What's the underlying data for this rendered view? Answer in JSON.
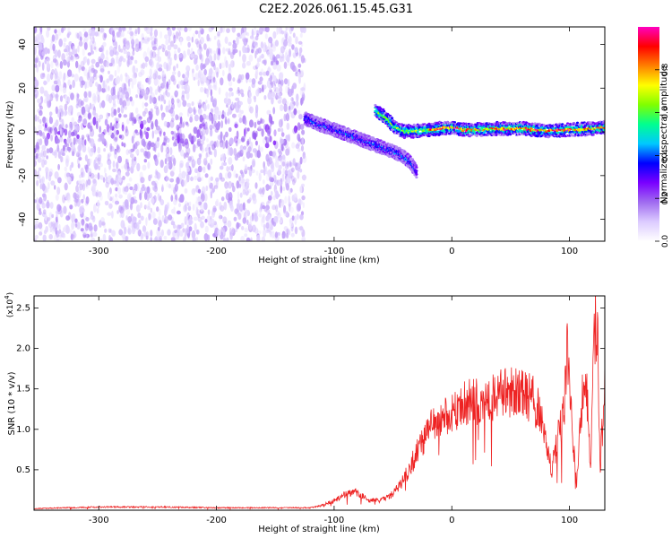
{
  "title": "C2E2.2026.061.15.45.G31",
  "chart_data": [
    {
      "type": "heatmap",
      "title": "C2E2.2026.061.15.45.G31",
      "xlabel": "Height of straight line (km)",
      "ylabel": "Frequency (Hz)",
      "xlim": [
        -355,
        130
      ],
      "ylim": [
        -50,
        48
      ],
      "xticks": [
        -300,
        -200,
        -100,
        0,
        100
      ],
      "yticks": [
        -40,
        -20,
        0,
        20,
        40
      ],
      "colorbar": {
        "label": "Normalized spectral amplitude",
        "range": [
          0,
          1
        ],
        "ticks": [
          "0.0",
          "0.2",
          "0.4",
          "0.6",
          "0.8"
        ],
        "tick_values": [
          0,
          0.2,
          0.4,
          0.6,
          0.8
        ],
        "colors": [
          "#ffffff",
          "#dccbff",
          "#a06cf0",
          "#7a00ff",
          "#0000ff",
          "#00c8ff",
          "#00ff90",
          "#80ff00",
          "#ffff00",
          "#ff8000",
          "#ff0000",
          "#ff00c0"
        ]
      },
      "noise_region": {
        "x_range": [
          -355,
          -125
        ],
        "amplitude": 0.12
      },
      "ridges": [
        {
          "name": "main",
          "points": [
            [
              -125,
              6
            ],
            [
              -110,
              3
            ],
            [
              -100,
              1
            ],
            [
              -90,
              -1
            ],
            [
              -80,
              -3
            ],
            [
              -70,
              -5
            ],
            [
              -60,
              -7
            ],
            [
              -50,
              -9
            ],
            [
              -42,
              -11
            ],
            [
              -35,
              -14
            ],
            [
              -30,
              -18
            ]
          ],
          "amplitude": 0.35
        },
        {
          "name": "upper",
          "points": [
            [
              -65,
              10
            ],
            [
              -55,
              6
            ],
            [
              -48,
              2
            ],
            [
              -40,
              0
            ],
            [
              -30,
              0.5
            ],
            [
              -20,
              1
            ],
            [
              -10,
              1.5
            ],
            [
              0,
              2
            ],
            [
              10,
              1
            ],
            [
              20,
              1
            ],
            [
              40,
              1.5
            ],
            [
              60,
              1.5
            ],
            [
              80,
              0.5
            ],
            [
              100,
              1
            ],
            [
              120,
              1.5
            ],
            [
              130,
              2
            ]
          ],
          "amplitude": 0.6
        }
      ]
    },
    {
      "type": "line",
      "xlabel": "Height of straight line (km)",
      "ylabel": "SNR (10 * v/v)",
      "y_multiplier": "(x10",
      "y_multiplier_exp": "4",
      "xlim": [
        -355,
        130
      ],
      "ylim": [
        0,
        2.65
      ],
      "xticks": [
        -300,
        -200,
        -100,
        0,
        100
      ],
      "yticks": [
        "0.5",
        "1.0",
        "1.5",
        "2.0",
        "2.5"
      ],
      "ytick_values": [
        0.5,
        1.0,
        1.5,
        2.0,
        2.5
      ],
      "series": [
        {
          "color": "#ee2222",
          "envelope": {
            "x": [
              -355,
              -300,
              -250,
              -200,
              -150,
              -120,
              -110,
              -100,
              -90,
              -80,
              -70,
              -60,
              -50,
              -40,
              -30,
              -20,
              -10,
              -5,
              0,
              10,
              20,
              30,
              40,
              50,
              60,
              70,
              75,
              80,
              85,
              90,
              95,
              98,
              100,
              103,
              106,
              110,
              113,
              116,
              118,
              120,
              122,
              124,
              126,
              128,
              130
            ],
            "y": [
              0.02,
              0.04,
              0.04,
              0.03,
              0.03,
              0.03,
              0.06,
              0.12,
              0.2,
              0.22,
              0.12,
              0.12,
              0.2,
              0.4,
              0.7,
              1.0,
              1.1,
              1.15,
              1.2,
              1.3,
              1.35,
              1.4,
              1.45,
              1.45,
              1.45,
              1.35,
              1.2,
              0.85,
              0.5,
              0.9,
              1.2,
              1.9,
              1.7,
              0.9,
              0.3,
              1.2,
              1.8,
              1.1,
              0.5,
              1.6,
              2.4,
              2.1,
              0.4,
              1.2,
              1.6
            ]
          }
        }
      ]
    }
  ]
}
